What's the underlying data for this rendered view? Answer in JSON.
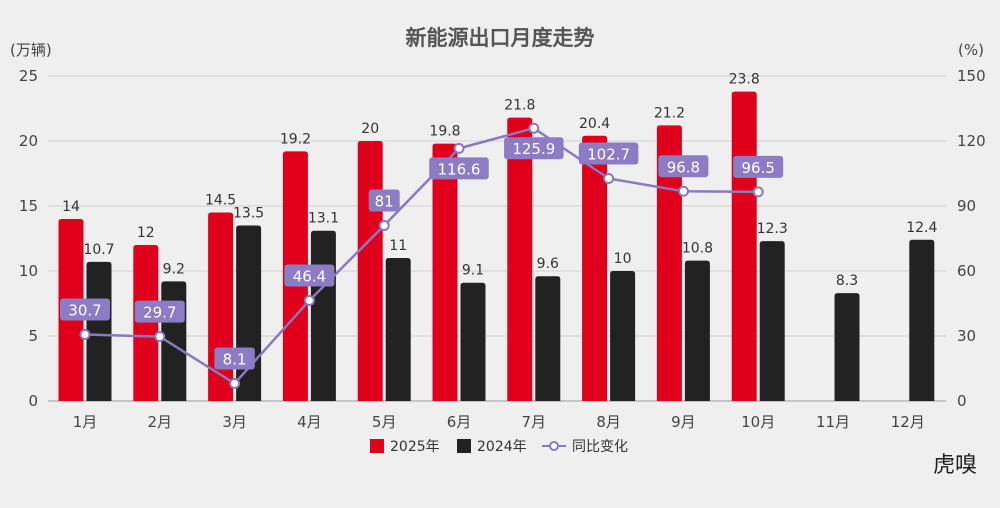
{
  "chart_data": {
    "type": "bar",
    "title": "新能源出口月度走势",
    "ylabel_left": "(万辆)",
    "ylabel_right": "(%)",
    "categories": [
      "1月",
      "2月",
      "3月",
      "4月",
      "5月",
      "6月",
      "7月",
      "8月",
      "9月",
      "10月",
      "11月",
      "12月"
    ],
    "ylim_left": [
      0,
      25
    ],
    "yticks_left": [
      0,
      5,
      10,
      15,
      20,
      25
    ],
    "ylim_right": [
      0,
      150
    ],
    "yticks_right": [
      0,
      30,
      60,
      90,
      120,
      150
    ],
    "grid": true,
    "legend_position": "bottom",
    "series": [
      {
        "name": "2025年",
        "type": "bar",
        "color": "#e0001b",
        "values": [
          14,
          12,
          14.5,
          19.2,
          20,
          19.8,
          21.8,
          20.4,
          21.2,
          23.8,
          null,
          null
        ],
        "labels": [
          "14",
          "12",
          "14.5",
          "19.2",
          "20",
          "19.8",
          "21.8",
          "20.4",
          "21.2",
          "23.8",
          "",
          ""
        ]
      },
      {
        "name": "2024年",
        "type": "bar",
        "color": "#222222",
        "values": [
          10.7,
          9.2,
          13.5,
          13.1,
          11,
          9.1,
          9.6,
          10,
          10.8,
          12.3,
          8.3,
          12.4
        ],
        "labels": [
          "10.7",
          "9.2",
          "13.5",
          "13.1",
          "11",
          "9.1",
          "9.6",
          "10",
          "10.8",
          "12.3",
          "8.3",
          "12.4"
        ]
      },
      {
        "name": "同比变化",
        "type": "line",
        "axis": "right",
        "color": "#8a78c0",
        "values": [
          30.7,
          29.7,
          8.1,
          46.4,
          81,
          116.6,
          125.9,
          102.7,
          96.8,
          96.5,
          null,
          null
        ],
        "labels": [
          "30.7",
          "29.7",
          "8.1",
          "46.4",
          "81",
          "116.6",
          "125.9",
          "102.7",
          "96.8",
          "96.5",
          "",
          ""
        ]
      }
    ]
  },
  "watermark": "虎嗅"
}
